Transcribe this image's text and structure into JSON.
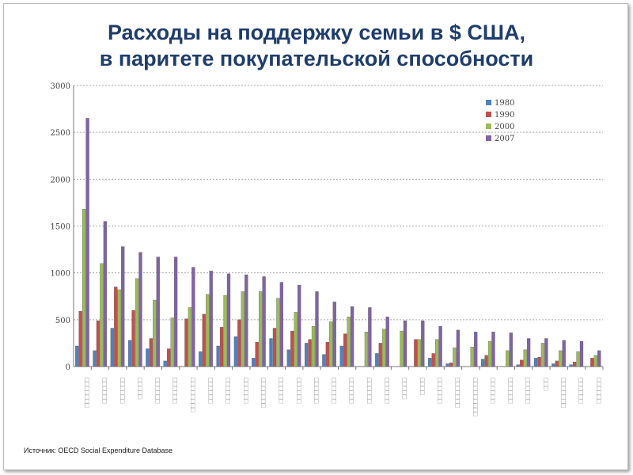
{
  "title_line1": "Расходы на поддержку семьи в $ США,",
  "title_line2": "в паритете покупательской способности",
  "source": "Источник: OECD Social Expenditure Database",
  "chart_data": {
    "type": "bar",
    "title": "Расходы на поддержку семьи в $ США, в паритете покупательской способности",
    "ylim": [
      0,
      3000
    ],
    "yticks": [
      "0",
      "500",
      "1000",
      "1500",
      "2000",
      "2500",
      "3000"
    ],
    "legend_position": "top-right",
    "categories": [
      "□□□□□□□",
      "□□□□□□",
      "□□□□□□",
      "□□□□□",
      "□□□□□□",
      "□□□□□□",
      "□□□□□□□□",
      "□□□□□□",
      "□□□□□□",
      "□□□□□□",
      "□□□□□□□",
      "□□□□□□",
      "□□□□□□",
      "□□□□□□",
      "□□□□□□",
      "□□□□□□",
      "□□□□□□",
      "□□□□□□",
      "□□□□□",
      "□□□□",
      "□□□□□□",
      "□□□□□□□",
      "□□□□□□□□□",
      "□□□□□□",
      "□□□□□□",
      "□□□□□□",
      "□□□",
      "□□□□□□□",
      "□□□□□□",
      "□□□□□□"
    ],
    "series": [
      {
        "name": "1980",
        "color": "#4f81bd",
        "values": [
          220,
          170,
          410,
          280,
          190,
          60,
          0,
          160,
          220,
          320,
          90,
          300,
          180,
          250,
          130,
          220,
          0,
          140,
          0,
          0,
          90,
          30,
          0,
          80,
          0,
          20,
          90,
          30,
          20,
          0
        ]
      },
      {
        "name": "1990",
        "color": "#c0504d",
        "values": [
          590,
          490,
          850,
          600,
          300,
          190,
          510,
          560,
          420,
          500,
          260,
          410,
          380,
          290,
          260,
          350,
          0,
          250,
          0,
          290,
          140,
          40,
          0,
          120,
          0,
          70,
          100,
          60,
          50,
          90
        ]
      },
      {
        "name": "2000",
        "color": "#9bbb59",
        "values": [
          1680,
          1100,
          820,
          940,
          710,
          520,
          630,
          770,
          760,
          800,
          800,
          730,
          580,
          430,
          480,
          530,
          370,
          400,
          380,
          290,
          290,
          200,
          210,
          270,
          170,
          180,
          250,
          170,
          160,
          120
        ]
      },
      {
        "name": "2007",
        "color": "#8064a2",
        "values": [
          2650,
          1550,
          1280,
          1220,
          1170,
          1170,
          1060,
          1020,
          990,
          980,
          960,
          900,
          870,
          800,
          690,
          640,
          630,
          530,
          490,
          490,
          430,
          390,
          370,
          370,
          360,
          300,
          300,
          280,
          270,
          170
        ]
      }
    ]
  }
}
